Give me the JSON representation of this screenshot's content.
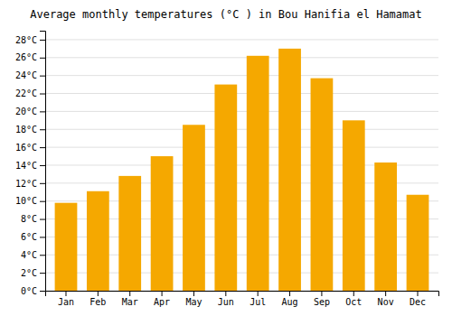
{
  "chart_data": {
    "type": "bar",
    "title": "Average monthly temperatures (°C ) in Bou Hanifia el Hamamat",
    "categories": [
      "Jan",
      "Feb",
      "Mar",
      "Apr",
      "May",
      "Jun",
      "Jul",
      "Aug",
      "Sep",
      "Oct",
      "Nov",
      "Dec"
    ],
    "values": [
      9.8,
      11.1,
      12.8,
      15.0,
      18.5,
      23.0,
      26.2,
      27.0,
      23.7,
      19.0,
      14.3,
      10.7
    ],
    "color": "#F5A800",
    "ylim": [
      0,
      29
    ],
    "yticks": [
      {
        "value": 0,
        "label": "0°C"
      },
      {
        "value": 2,
        "label": "2°C"
      },
      {
        "value": 4,
        "label": "4°C"
      },
      {
        "value": 6,
        "label": "6°C"
      },
      {
        "value": 8,
        "label": "8°C"
      },
      {
        "value": 10,
        "label": "10°C"
      },
      {
        "value": 12,
        "label": "12°C"
      },
      {
        "value": 14,
        "label": "14°C"
      },
      {
        "value": 16,
        "label": "16°C"
      },
      {
        "value": 18,
        "label": "18°C"
      },
      {
        "value": 20,
        "label": "20°C"
      },
      {
        "value": 22,
        "label": "22°C"
      },
      {
        "value": 24,
        "label": "24°C"
      },
      {
        "value": 26,
        "label": "26°C"
      },
      {
        "value": 28,
        "label": "28°C"
      }
    ],
    "grid": true
  }
}
